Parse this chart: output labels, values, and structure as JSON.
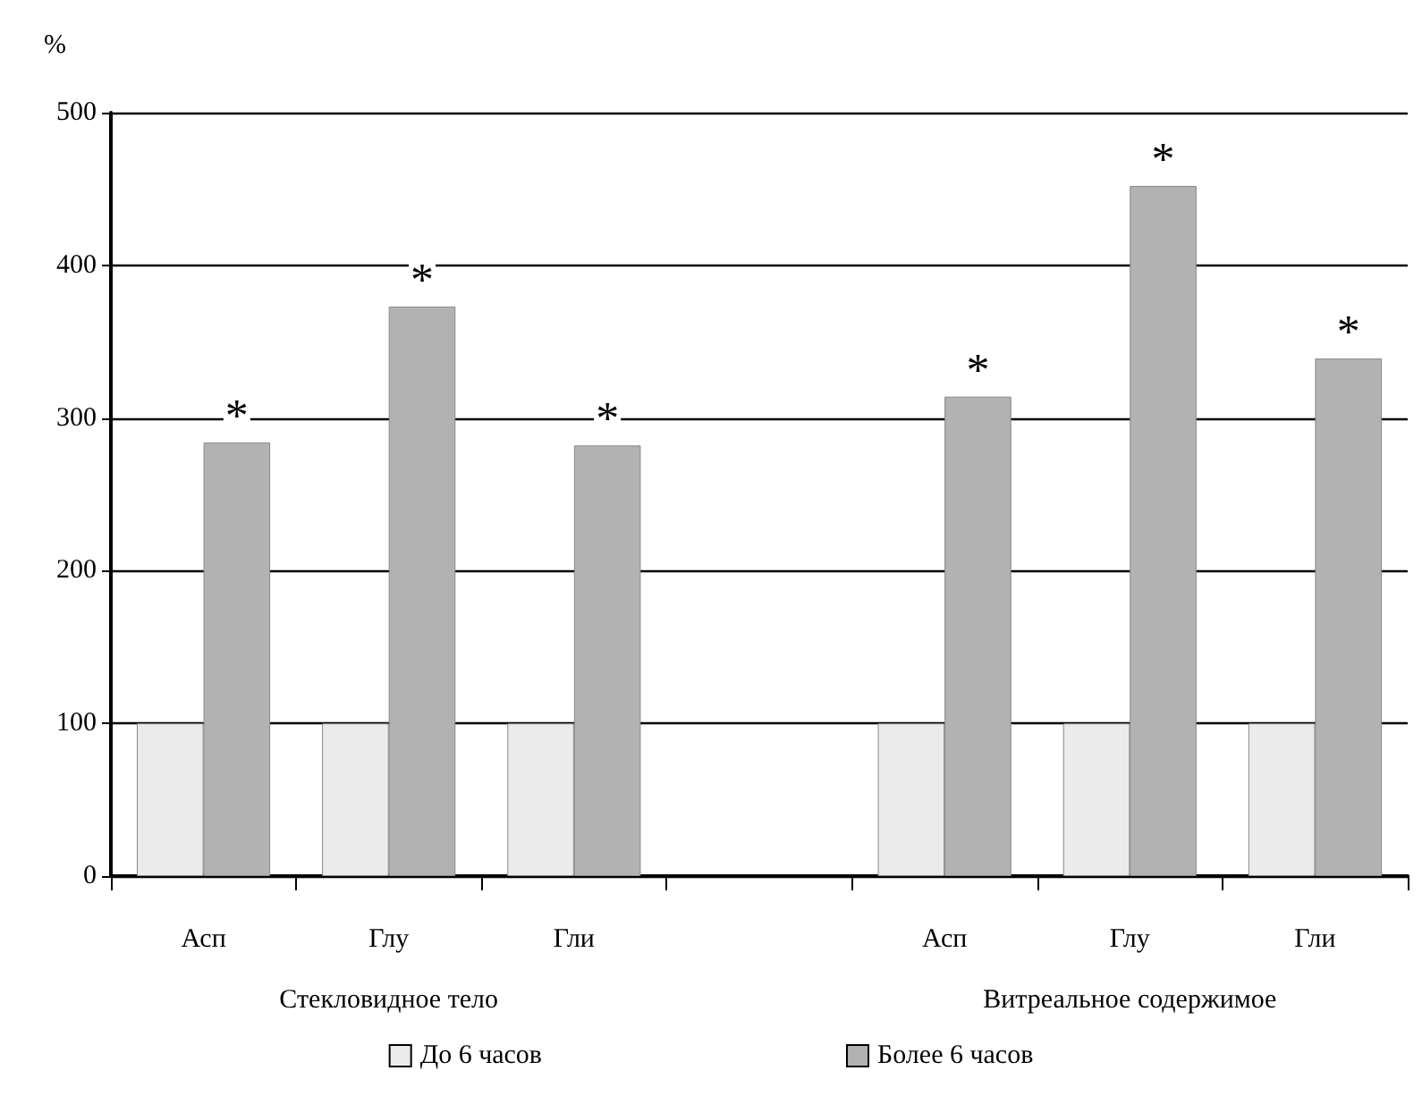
{
  "chart_data": {
    "type": "bar",
    "ylabel": "%",
    "categories": [
      "Асп",
      "Глу",
      "Гли",
      null,
      "Асп",
      "Глу",
      "Гли"
    ],
    "series": [
      {
        "name": "До 6 часов",
        "color": "#ebebeb",
        "values": [
          100,
          100,
          100,
          null,
          100,
          100,
          100
        ]
      },
      {
        "name": "Более 6 часов",
        "color": "#b2b2b2",
        "values": [
          284,
          373,
          282,
          null,
          314,
          452,
          339
        ],
        "value_labels": [
          "*",
          "*",
          "*",
          null,
          "*",
          "*",
          "*"
        ]
      }
    ],
    "ylim": [
      0,
      500
    ],
    "yticks": [
      0,
      100,
      200,
      300,
      400,
      500
    ],
    "grid": "y",
    "legend": "bottom",
    "annotations": [
      "Стекловидное тело",
      "Витреальное содержимое"
    ]
  }
}
